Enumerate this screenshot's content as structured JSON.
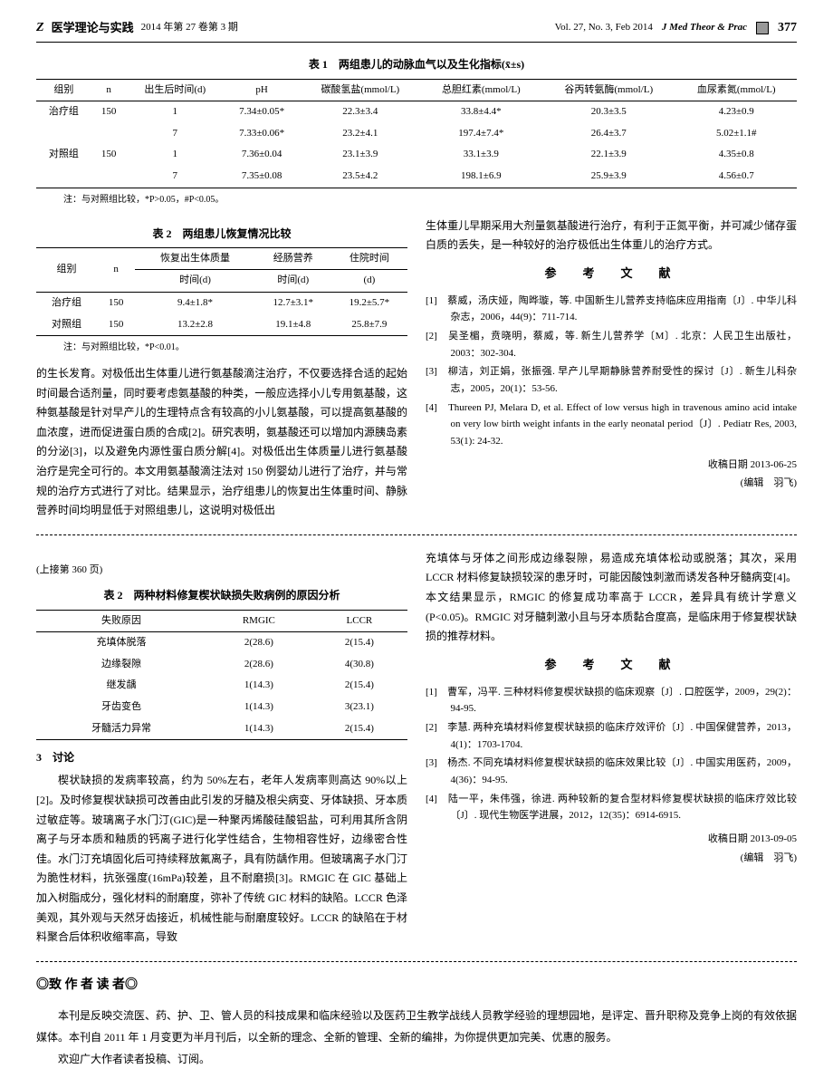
{
  "header": {
    "logo": "Z",
    "journal_cn": "医学理论与实践",
    "issue_cn": "2014 年第 27 卷第 3 期",
    "issue_en": "Vol. 27, No. 3, Feb 2014",
    "journal_en": "J Med Theor & Prac",
    "page": "377"
  },
  "table1": {
    "title": "表 1　两组患儿的动脉血气以及生化指标(x̄±s)",
    "headers": [
      "组别",
      "n",
      "出生后时间(d)",
      "pH",
      "碳酸氢盐(mmol/L)",
      "总胆红素(mmol/L)",
      "谷丙转氨酶(mmol/L)",
      "血尿素氮(mmol/L)"
    ],
    "rows": [
      [
        "治疗组",
        "150",
        "1",
        "7.34±0.05*",
        "22.3±3.4",
        "33.8±4.4*",
        "20.3±3.5",
        "4.23±0.9"
      ],
      [
        "",
        "",
        "7",
        "7.33±0.06*",
        "23.2±4.1",
        "197.4±7.4*",
        "26.4±3.7",
        "5.02±1.1#"
      ],
      [
        "对照组",
        "150",
        "1",
        "7.36±0.04",
        "23.1±3.9",
        "33.1±3.9",
        "22.1±3.9",
        "4.35±0.8"
      ],
      [
        "",
        "",
        "7",
        "7.35±0.08",
        "23.5±4.2",
        "198.1±6.9",
        "25.9±3.9",
        "4.56±0.7"
      ]
    ],
    "note": "注：与对照组比较，*P>0.05，#P<0.05。"
  },
  "table2a": {
    "title": "表 2　两组患儿恢复情况比较",
    "headers_row1": [
      "组别",
      "n",
      "恢复出生体质量",
      "经肠营养",
      "住院时间"
    ],
    "headers_row2": [
      "",
      "",
      "时间(d)",
      "时间(d)",
      "(d)"
    ],
    "rows": [
      [
        "治疗组",
        "150",
        "9.4±1.8*",
        "12.7±3.1*",
        "19.2±5.7*"
      ],
      [
        "对照组",
        "150",
        "13.2±2.8",
        "19.1±4.8",
        "25.8±7.9"
      ]
    ],
    "note": "注：与对照组比较，*P<0.01。"
  },
  "body1": {
    "p1": "的生长发育。对极低出生体重儿进行氨基酸滴注治疗，不仅要选择合适的起始时间最合适剂量，同时要考虑氨基酸的种类，一般应选择小儿专用氨基酸，这种氨基酸是针对早产儿的生理特点含有较高的小儿氨基酸，可以提高氨基酸的血浓度，进而促进蛋白质的合成[2]。研究表明，氨基酸还可以增加内源胰岛素的分泌[3]，以及避免内源性蛋白质分解[4]。对极低出生体质量儿进行氨基酸治疗是完全可行的。本文用氨基酸滴注法对 150 例婴幼儿进行了治疗，并与常规的治疗方式进行了对比。结果显示，治疗组患儿的恢复出生体重时间、静脉营养时间均明显低于对照组患儿，这说明对极低出"
  },
  "body1_right": {
    "p1": "生体重儿早期采用大剂量氨基酸进行治疗，有利于正氮平衡，并可减少储存蛋白质的丢失，是一种较好的治疗极低出生体重儿的治疗方式。"
  },
  "refs1": {
    "title": "参　考　文　献",
    "items": [
      "[1]　蔡威，汤庆娅，陶晔璇，等. 中国新生儿营养支持临床应用指南〔J〕. 中华儿科杂志，2006，44(9)：711-714.",
      "[2]　吴圣楣，贲晓明，蔡威，等. 新生儿营养学〔M〕. 北京：人民卫生出版社，2003：302-304.",
      "[3]　柳洁，刘正娟，张振强. 早产儿早期静脉营养耐受性的探讨〔J〕. 新生儿科杂志，2005，20(1)：53-56.",
      "[4]　Thureen PJ, Melara D, et al. Effect of low versus high in travenous amino acid intake on very low birth weight infants in the early neonatal period〔J〕. Pediatr Res, 2003, 53(1): 24-32."
    ],
    "date": "收稿日期 2013-06-25",
    "editor": "(编辑　羽飞)"
  },
  "continuation": "(上接第 360 页)",
  "table2b": {
    "title": "表 2　两种材料修复楔状缺损失败病例的原因分析",
    "headers": [
      "失败原因",
      "RMGIC",
      "LCCR"
    ],
    "rows": [
      [
        "充填体脱落",
        "2(28.6)",
        "2(15.4)"
      ],
      [
        "边缘裂隙",
        "2(28.6)",
        "4(30.8)"
      ],
      [
        "继发龋",
        "1(14.3)",
        "2(15.4)"
      ],
      [
        "牙齿变色",
        "1(14.3)",
        "3(23.1)"
      ],
      [
        "牙髓活力异常",
        "1(14.3)",
        "2(15.4)"
      ]
    ]
  },
  "section3": {
    "heading": "3　讨论",
    "p1": "楔状缺损的发病率较高，约为 50%左右，老年人发病率则高达 90%以上[2]。及时修复楔状缺损可改善由此引发的牙髓及根尖病变、牙体缺损、牙本质过敏症等。玻璃离子水门汀(GIC)是一种聚丙烯酸硅酸铝盐，可利用其所含阴离子与牙本质和釉质的钙离子进行化学性结合，生物相容性好，边缘密合性佳。水门汀充填固化后可持续释放氟离子，具有防龋作用。但玻璃离子水门汀为脆性材料，抗张强度(16mPa)较差，且不耐磨损[3]。RMGIC 在 GIC 基础上加入树脂成分，强化材料的耐磨度，弥补了传统 GIC 材料的缺陷。LCCR 色泽美观，其外观与天然牙齿接近，机械性能与耐磨度较好。LCCR 的缺陷在于材料聚合后体积收缩率高，导致"
  },
  "body2_right": {
    "p1": "充填体与牙体之间形成边缘裂隙，易造成充填体松动或脱落；其次，采用 LCCR 材料修复缺损较深的患牙时，可能因酸蚀刺激而诱发各种牙髓病变[4]。本文结果显示，RMGIC 的修复成功率高于 LCCR，差异具有统计学意义(P<0.05)。RMGIC 对牙髓刺激小且与牙本质黏合度高，是临床用于修复楔状缺损的推荐材料。"
  },
  "refs2": {
    "title": "参　考　文　献",
    "items": [
      "[1]　曹军，冯平. 三种材料修复楔状缺损的临床观察〔J〕. 口腔医学，2009，29(2)：94-95.",
      "[2]　李慧. 两种充填材料修复楔状缺损的临床疗效评价〔J〕. 中国保健营养，2013，4(1)：1703-1704.",
      "[3]　杨杰. 不同充填材料修复楔状缺损的临床效果比较〔J〕. 中国实用医药，2009，4(36)：94-95.",
      "[4]　陆一平，朱伟强，徐进. 两种较新的复合型材料修复楔状缺损的临床疗效比较〔J〕. 现代生物医学进展，2012，12(35)：6914-6915."
    ],
    "date": "收稿日期 2013-09-05",
    "editor": "(编辑　羽飞)"
  },
  "notice": {
    "title": "◎致 作 者 读 者◎",
    "p1": "本刊是反映交流医、药、护、卫、管人员的科技成果和临床经验以及医药卫生教学战线人员教学经验的理想园地，是评定、晋升职称及竞争上岗的有效依据媒体。本刊自 2011 年 1 月变更为半月刊后，以全新的理念、全新的管理、全新的编排，为你提供更加完美、优惠的服务。",
    "p2": "欢迎广大作者读者投稿、订阅。"
  }
}
